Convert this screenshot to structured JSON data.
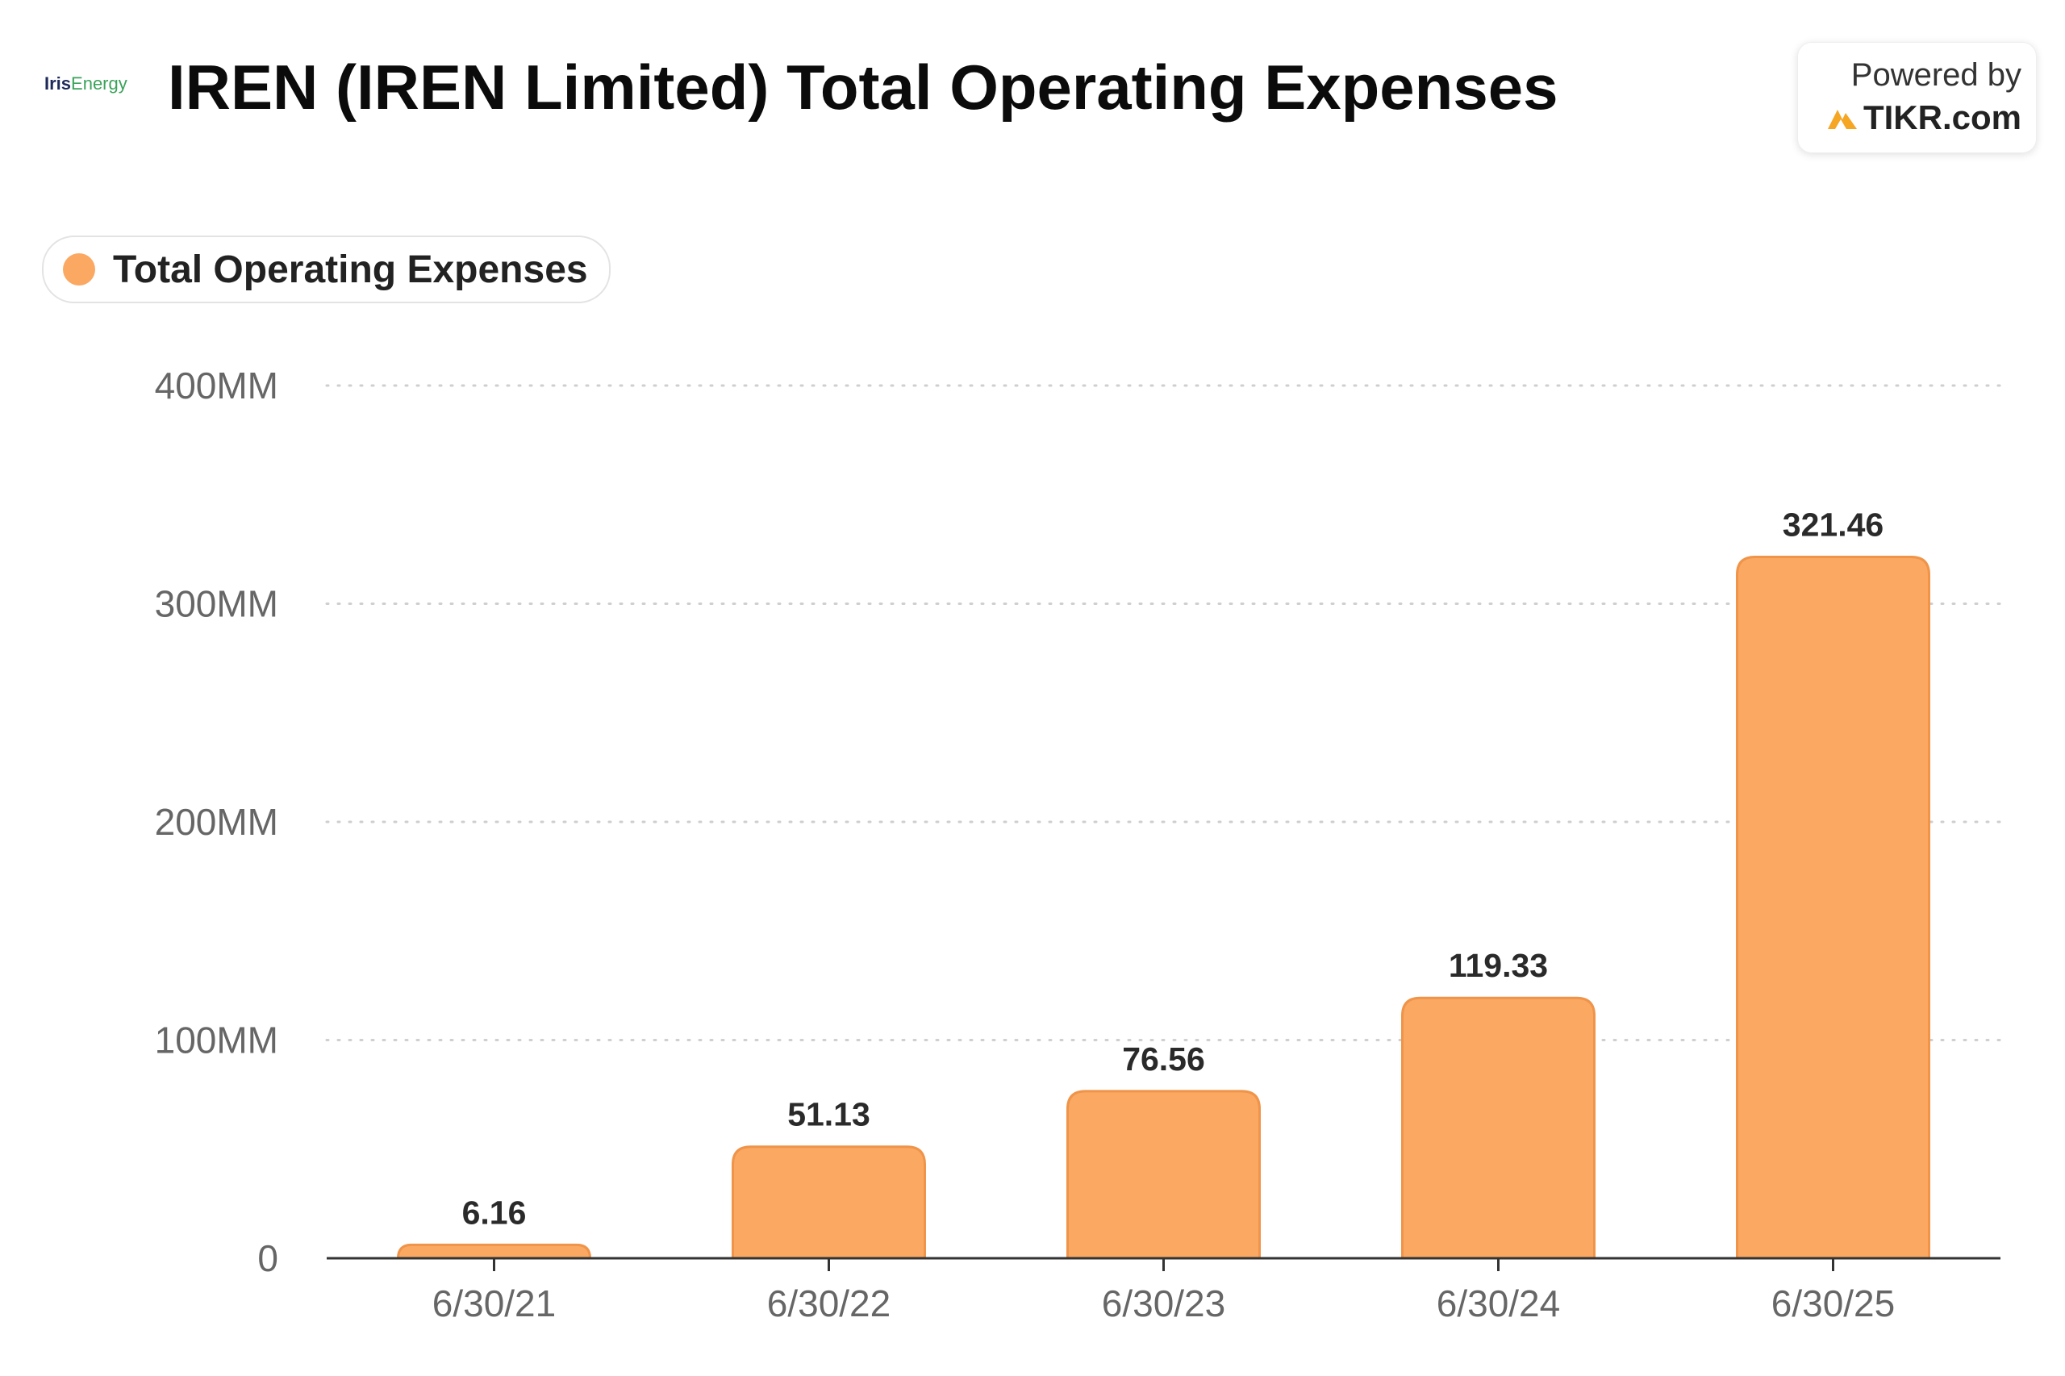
{
  "header": {
    "title": "IREN (IREN Limited) Total Operating Expenses",
    "logo_part1": "Iris",
    "logo_part2": "Energy"
  },
  "badge": {
    "powered_by": "Powered by",
    "brand": "TIKR.com",
    "brand_icon": "tikr-logo-icon"
  },
  "legend": {
    "label": "Total Operating Expenses"
  },
  "colors": {
    "bar": "#fba862",
    "bar_stroke": "#ef9449",
    "grid": "#cfcfcf",
    "axis": "#333333",
    "brand_accent": "#f5a623"
  },
  "chart_data": {
    "type": "bar",
    "title": "IREN (IREN Limited) Total Operating Expenses",
    "xlabel": "",
    "ylabel": "",
    "categories": [
      "6/30/21",
      "6/30/22",
      "6/30/23",
      "6/30/24",
      "6/30/25"
    ],
    "series": [
      {
        "name": "Total Operating Expenses",
        "values": [
          6.16,
          51.13,
          76.56,
          119.33,
          321.46
        ],
        "labels": [
          "6.16",
          "51.13",
          "76.56",
          "119.33",
          "321.46"
        ]
      }
    ],
    "ylim": [
      0,
      400
    ],
    "yticks": [
      0,
      100,
      200,
      300,
      400
    ],
    "ytick_labels": [
      "0",
      "100MM",
      "200MM",
      "300MM",
      "400MM"
    ],
    "grid": true,
    "grid_style": "dotted",
    "legend_position": "top-left"
  }
}
